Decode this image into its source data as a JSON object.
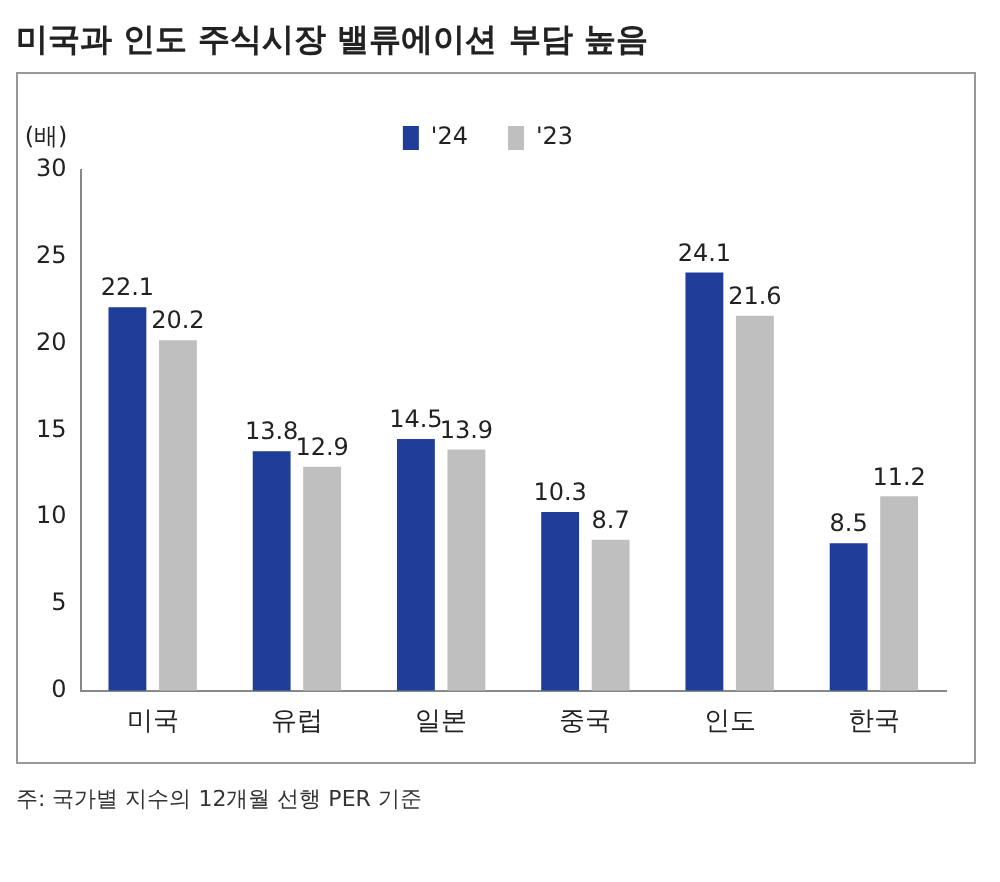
{
  "chart_data": {
    "type": "bar",
    "title": "미국과 인도 주식시장 밸류에이션 부담 높음",
    "ylabel": "(배)",
    "categories": [
      "미국",
      "유럽",
      "일본",
      "중국",
      "인도",
      "한국"
    ],
    "series": [
      {
        "name": "'24",
        "color": "#1f3d99",
        "values": [
          22.1,
          13.8,
          14.5,
          10.3,
          24.1,
          8.5
        ]
      },
      {
        "name": "'23",
        "color": "#bfbfbf",
        "values": [
          20.2,
          12.9,
          13.9,
          8.7,
          21.6,
          11.2
        ]
      }
    ],
    "ylim": [
      0,
      30
    ],
    "yticks": [
      0,
      5,
      10,
      15,
      20,
      25,
      30
    ],
    "grid": false,
    "legend": "top",
    "data_labels": true,
    "annotations": [
      "주: 국가별 지수의 12개월 선행 PER 기준"
    ]
  }
}
